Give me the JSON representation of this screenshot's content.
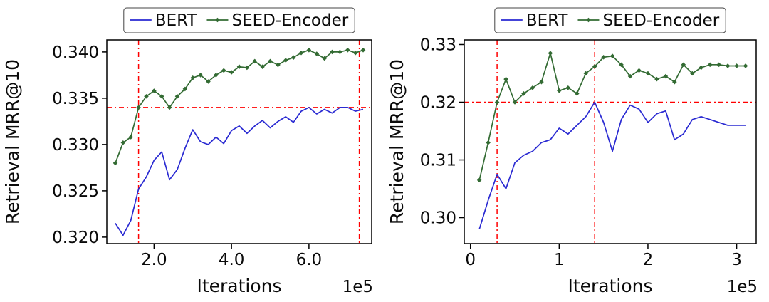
{
  "figure": {
    "background": "#ffffff",
    "description": "Two side-by-side line charts comparing BERT vs SEED-Encoder retrieval MRR@10 over training iterations"
  },
  "chart_data": [
    {
      "type": "line",
      "title": "",
      "xlabel": "Iterations",
      "ylabel": "Retrieval MRR@10",
      "x_offset_text": "1e5",
      "xlim": [
        0.78,
        7.62
      ],
      "ylim": [
        0.3193,
        0.3413
      ],
      "xticks": [
        2.0,
        4.0,
        6.0
      ],
      "xtick_labels": [
        "2.0",
        "4.0",
        "6.0"
      ],
      "yticks": [
        0.32,
        0.325,
        0.33,
        0.335,
        0.34
      ],
      "ytick_labels": [
        "0.320",
        "0.325",
        "0.330",
        "0.335",
        "0.340"
      ],
      "grid": false,
      "legend": {
        "position": "above-plot",
        "entries": [
          "BERT",
          "SEED-Encoder"
        ]
      },
      "reference_lines": {
        "color": "#ff0000",
        "style": "dashdot",
        "h": [
          0.334
        ],
        "v": [
          1.6,
          7.3
        ]
      },
      "series": [
        {
          "name": "BERT",
          "color": "#2a2ad2",
          "marker": "none",
          "x": [
            1.0,
            1.2,
            1.4,
            1.6,
            1.8,
            2.0,
            2.2,
            2.4,
            2.6,
            2.8,
            3.0,
            3.2,
            3.4,
            3.6,
            3.8,
            4.0,
            4.2,
            4.4,
            4.6,
            4.8,
            5.0,
            5.2,
            5.4,
            5.6,
            5.8,
            6.0,
            6.2,
            6.4,
            6.6,
            6.8,
            7.0,
            7.2,
            7.4
          ],
          "y": [
            0.3215,
            0.3202,
            0.3218,
            0.3252,
            0.3265,
            0.3283,
            0.3292,
            0.3262,
            0.3273,
            0.3296,
            0.3316,
            0.3303,
            0.33,
            0.3308,
            0.3301,
            0.3315,
            0.332,
            0.3312,
            0.332,
            0.3326,
            0.3318,
            0.3325,
            0.333,
            0.3324,
            0.3336,
            0.334,
            0.3333,
            0.3338,
            0.3334,
            0.334,
            0.334,
            0.3336,
            0.3338
          ]
        },
        {
          "name": "SEED-Encoder",
          "color": "#336b33",
          "marker": "diamond",
          "x": [
            1.0,
            1.2,
            1.4,
            1.6,
            1.8,
            2.0,
            2.2,
            2.4,
            2.6,
            2.8,
            3.0,
            3.2,
            3.4,
            3.6,
            3.8,
            4.0,
            4.2,
            4.4,
            4.6,
            4.8,
            5.0,
            5.2,
            5.4,
            5.6,
            5.8,
            6.0,
            6.2,
            6.4,
            6.6,
            6.8,
            7.0,
            7.2,
            7.4
          ],
          "y": [
            0.328,
            0.3302,
            0.3308,
            0.334,
            0.3352,
            0.3358,
            0.3352,
            0.334,
            0.3352,
            0.336,
            0.3372,
            0.3375,
            0.3368,
            0.3375,
            0.338,
            0.3378,
            0.3384,
            0.3383,
            0.339,
            0.3384,
            0.339,
            0.3386,
            0.3391,
            0.3394,
            0.3399,
            0.3402,
            0.3398,
            0.3393,
            0.34,
            0.34,
            0.3402,
            0.3399,
            0.3402
          ]
        }
      ]
    },
    {
      "type": "line",
      "title": "",
      "xlabel": "Iterations",
      "ylabel": "Retrieval MRR@10",
      "x_offset_text": "1e5",
      "xlim": [
        -0.07,
        3.22
      ],
      "ylim": [
        0.2955,
        0.3308
      ],
      "xticks": [
        0,
        1,
        2,
        3
      ],
      "xtick_labels": [
        "0",
        "1",
        "2",
        "3"
      ],
      "yticks": [
        0.3,
        0.31,
        0.32,
        0.33
      ],
      "ytick_labels": [
        "0.30",
        "0.31",
        "0.32",
        "0.33"
      ],
      "grid": false,
      "legend": {
        "position": "above-plot",
        "entries": [
          "BERT",
          "SEED-Encoder"
        ]
      },
      "reference_lines": {
        "color": "#ff0000",
        "style": "dashdot",
        "h": [
          0.32
        ],
        "v": [
          0.3,
          1.4
        ]
      },
      "series": [
        {
          "name": "BERT",
          "color": "#2a2ad2",
          "marker": "none",
          "x": [
            0.1,
            0.2,
            0.3,
            0.4,
            0.5,
            0.6,
            0.7,
            0.8,
            0.9,
            1.0,
            1.1,
            1.2,
            1.3,
            1.4,
            1.5,
            1.6,
            1.7,
            1.8,
            1.9,
            2.0,
            2.1,
            2.2,
            2.3,
            2.4,
            2.5,
            2.6,
            2.7,
            2.8,
            2.9,
            3.0,
            3.1
          ],
          "y": [
            0.298,
            0.303,
            0.3075,
            0.305,
            0.3095,
            0.3108,
            0.3115,
            0.313,
            0.3135,
            0.3155,
            0.3145,
            0.316,
            0.3175,
            0.32,
            0.3165,
            0.3115,
            0.317,
            0.3195,
            0.3188,
            0.3165,
            0.318,
            0.3185,
            0.3135,
            0.3145,
            0.317,
            0.3175,
            0.317,
            0.3165,
            0.316,
            0.316,
            0.316
          ]
        },
        {
          "name": "SEED-Encoder",
          "color": "#336b33",
          "marker": "diamond",
          "x": [
            0.1,
            0.2,
            0.3,
            0.4,
            0.5,
            0.6,
            0.7,
            0.8,
            0.9,
            1.0,
            1.1,
            1.2,
            1.3,
            1.4,
            1.5,
            1.6,
            1.7,
            1.8,
            1.9,
            2.0,
            2.1,
            2.2,
            2.3,
            2.4,
            2.5,
            2.6,
            2.7,
            2.8,
            2.9,
            3.0,
            3.1
          ],
          "y": [
            0.3065,
            0.313,
            0.32,
            0.324,
            0.32,
            0.3215,
            0.3225,
            0.3235,
            0.3285,
            0.322,
            0.3225,
            0.3215,
            0.325,
            0.3262,
            0.3278,
            0.328,
            0.3265,
            0.3245,
            0.3255,
            0.325,
            0.324,
            0.3245,
            0.3235,
            0.3265,
            0.325,
            0.326,
            0.3265,
            0.3265,
            0.3263,
            0.3263,
            0.3263
          ]
        }
      ]
    }
  ]
}
